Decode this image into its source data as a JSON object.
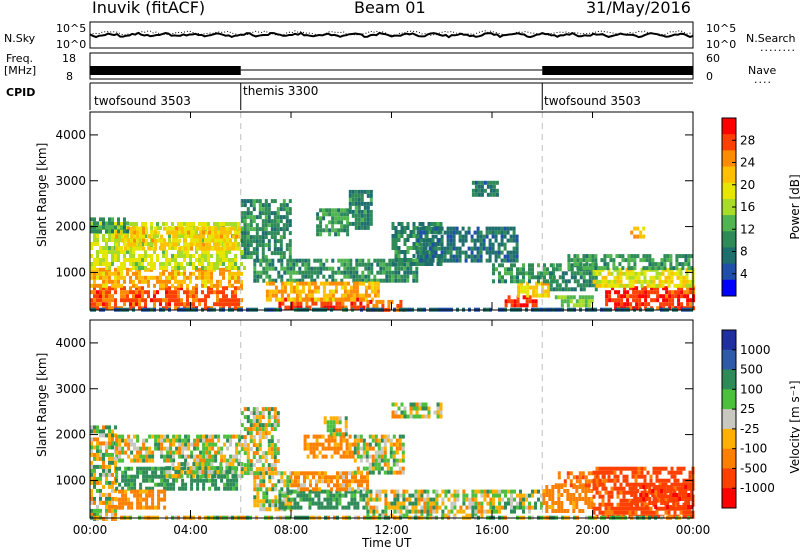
{
  "header": {
    "station": "Inuvik (fitACF)",
    "beam": "Beam 01",
    "date": "31/May/2016"
  },
  "panels": {
    "nsky_label": "N.Sky",
    "nsky_ticks": [
      "10^5",
      "10^0"
    ],
    "nsearch_label": "N.Search",
    "nsearch_ticks": [
      "10^5",
      "10^0"
    ],
    "freq_label": "Freq.",
    "freq_unit": "[MHz]",
    "freq_ticks": [
      "18",
      "8"
    ],
    "nave_label": "Nave",
    "nave_ticks": [
      "60",
      "0"
    ],
    "cpid_label": "CPID",
    "cpid_segments": [
      {
        "name": "twofsound 3503",
        "start_hour": 0,
        "end_hour": 6
      },
      {
        "name": "themis 3300",
        "start_hour": 6,
        "end_hour": 18
      },
      {
        "name": "twofsound 3503",
        "start_hour": 18,
        "end_hour": 24
      }
    ]
  },
  "colorbars": {
    "power_label": "Power [dB]",
    "power_ticks": [
      "28",
      "24",
      "20",
      "16",
      "12",
      "8",
      "4"
    ],
    "power_colors": [
      "#ff0000",
      "#ff4000",
      "#ff8c00",
      "#ffc000",
      "#e6e600",
      "#a8dc28",
      "#50b450",
      "#2e8b57",
      "#1e6e6e",
      "#1f4fa8",
      "#0000ff"
    ],
    "velocity_label": "Velocity [m s⁻¹]",
    "velocity_ticks": [
      "1000",
      "500",
      "100",
      "25",
      "-25",
      "-100",
      "-500",
      "-1000"
    ],
    "velocity_colors": [
      "#1f2fa0",
      "#2e5aa8",
      "#2e8b57",
      "#4cbf3c",
      "#c8c8c0",
      "#ffb000",
      "#ff8000",
      "#ff4000",
      "#ff0000"
    ]
  },
  "chart_data": [
    {
      "type": "heatmap",
      "title": "Power",
      "xlabel": "",
      "ylabel": "Slant Range [km]",
      "x_ticks": [
        "00:00",
        "04:00",
        "08:00",
        "12:00",
        "16:00",
        "20:00",
        "00:00"
      ],
      "y_ticks": [
        "1000",
        "2000",
        "3000",
        "4000"
      ],
      "xlim_hours": [
        0,
        24
      ],
      "ylim_km": [
        180,
        4500
      ],
      "colorbar": "Power [dB]",
      "zlim": [
        0,
        30
      ],
      "regions": [
        {
          "t0": 0,
          "t1": 6,
          "r0": 200,
          "r1": 700,
          "value": 26
        },
        {
          "t0": 0,
          "t1": 6,
          "r0": 700,
          "r1": 1100,
          "value": 22
        },
        {
          "t0": 0,
          "t1": 6.2,
          "r0": 1100,
          "r1": 2100,
          "value": 16
        },
        {
          "t0": 1,
          "t1": 6,
          "r0": 1500,
          "r1": 2000,
          "value": 20
        },
        {
          "t0": 0,
          "t1": 1.5,
          "r0": 1900,
          "r1": 2200,
          "value": 10
        },
        {
          "t0": 6,
          "t1": 8,
          "r0": 1300,
          "r1": 2600,
          "value": 9
        },
        {
          "t0": 6.5,
          "t1": 13,
          "r0": 800,
          "r1": 1300,
          "value": 9
        },
        {
          "t0": 7.5,
          "t1": 11,
          "r0": 200,
          "r1": 450,
          "value": 28
        },
        {
          "t0": 7,
          "t1": 11.5,
          "r0": 450,
          "r1": 800,
          "value": 22
        },
        {
          "t0": 11,
          "t1": 12.5,
          "r0": 200,
          "r1": 400,
          "value": 26
        },
        {
          "t0": 9,
          "t1": 10.2,
          "r0": 1800,
          "r1": 2400,
          "value": 10
        },
        {
          "t0": 10.3,
          "t1": 11.2,
          "r0": 2000,
          "r1": 2800,
          "value": 8
        },
        {
          "t0": 12,
          "t1": 14,
          "r0": 1200,
          "r1": 2100,
          "value": 8
        },
        {
          "t0": 13,
          "t1": 17,
          "r0": 1300,
          "r1": 2000,
          "value": 6
        },
        {
          "t0": 15.2,
          "t1": 16.2,
          "r0": 2700,
          "r1": 3000,
          "value": 7
        },
        {
          "t0": 16.5,
          "t1": 17.7,
          "r0": 250,
          "r1": 500,
          "value": 28
        },
        {
          "t0": 17,
          "t1": 18.2,
          "r0": 500,
          "r1": 800,
          "value": 20
        },
        {
          "t0": 16,
          "t1": 18.5,
          "r0": 800,
          "r1": 1200,
          "value": 10
        },
        {
          "t0": 18.3,
          "t1": 20.2,
          "r0": 600,
          "r1": 1200,
          "value": 8
        },
        {
          "t0": 18.5,
          "t1": 20,
          "r0": 250,
          "r1": 500,
          "value": 14
        },
        {
          "t0": 20.5,
          "t1": 24,
          "r0": 250,
          "r1": 700,
          "value": 28
        },
        {
          "t0": 20,
          "t1": 24,
          "r0": 700,
          "r1": 1100,
          "value": 18
        },
        {
          "t0": 19,
          "t1": 24,
          "r0": 1100,
          "r1": 1400,
          "value": 10
        },
        {
          "t0": 21.5,
          "t1": 22,
          "r0": 1800,
          "r1": 2000,
          "value": 22
        },
        {
          "t0": 0,
          "t1": 24,
          "r0": 180,
          "r1": 230,
          "value": 5
        }
      ]
    },
    {
      "type": "heatmap",
      "title": "Velocity",
      "xlabel": "Time UT",
      "ylabel": "Slant Range [km]",
      "x_ticks": [
        "00:00",
        "04:00",
        "08:00",
        "12:00",
        "16:00",
        "20:00",
        "00:00"
      ],
      "y_ticks": [
        "1000",
        "2000",
        "3000",
        "4000"
      ],
      "xlim_hours": [
        0,
        24
      ],
      "ylim_km": [
        180,
        4500
      ],
      "colorbar": "Velocity [m s⁻¹]",
      "zlim": [
        -1000,
        1000
      ],
      "regions": [
        {
          "t0": 0,
          "t1": 1,
          "r0": 1600,
          "r1": 2200,
          "value": 0
        },
        {
          "t0": 1,
          "t1": 6,
          "r0": 1400,
          "r1": 2000,
          "value": 0
        },
        {
          "t0": 0,
          "t1": 1,
          "r0": 200,
          "r1": 1600,
          "value": 0
        },
        {
          "t0": 1,
          "t1": 5.8,
          "r0": 800,
          "r1": 1300,
          "value": 200
        },
        {
          "t0": 1,
          "t1": 3,
          "r0": 400,
          "r1": 800,
          "value": -200
        },
        {
          "t0": 3,
          "t1": 6,
          "r0": 1100,
          "r1": 1400,
          "value": 40
        },
        {
          "t0": 6,
          "t1": 7.5,
          "r0": 1200,
          "r1": 2600,
          "value": 0
        },
        {
          "t0": 6.5,
          "t1": 8,
          "r0": 400,
          "r1": 1200,
          "value": 0
        },
        {
          "t0": 7.5,
          "t1": 11,
          "r0": 400,
          "r1": 800,
          "value": 200
        },
        {
          "t0": 8,
          "t1": 11,
          "r0": 800,
          "r1": 1200,
          "value": -150
        },
        {
          "t0": 8.5,
          "t1": 10.5,
          "r0": 1500,
          "r1": 2000,
          "value": -200
        },
        {
          "t0": 9.3,
          "t1": 10.2,
          "r0": 2000,
          "r1": 2400,
          "value": 0
        },
        {
          "t0": 10.5,
          "t1": 12.5,
          "r0": 1200,
          "r1": 2000,
          "value": 0
        },
        {
          "t0": 12,
          "t1": 14,
          "r0": 2400,
          "r1": 2700,
          "value": 0
        },
        {
          "t0": 11,
          "t1": 16,
          "r0": 250,
          "r1": 800,
          "value": 0
        },
        {
          "t0": 16,
          "t1": 18,
          "r0": 300,
          "r1": 800,
          "value": 40
        },
        {
          "t0": 18,
          "t1": 20,
          "r0": 300,
          "r1": 900,
          "value": -200
        },
        {
          "t0": 18.5,
          "t1": 20.5,
          "r0": 900,
          "r1": 1200,
          "value": -400
        },
        {
          "t0": 20,
          "t1": 24,
          "r0": 200,
          "r1": 1300,
          "value": -600
        },
        {
          "t0": 21.5,
          "t1": 24,
          "r0": 400,
          "r1": 900,
          "value": -900
        },
        {
          "t0": 0,
          "t1": 24,
          "r0": 180,
          "r1": 230,
          "value": 0
        }
      ]
    }
  ]
}
